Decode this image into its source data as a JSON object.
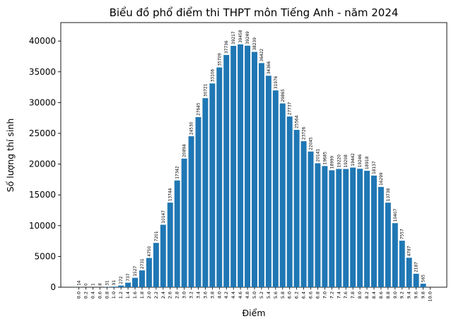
{
  "chart_data": {
    "type": "bar",
    "title": "Biểu đồ phổ điểm thi THPT môn Tiếng Anh - năm 2024",
    "xlabel": "Điểm",
    "ylabel": "Số lượng thí sinh",
    "ylim": [
      0,
      43000
    ],
    "yticks": [
      0,
      5000,
      10000,
      15000,
      20000,
      25000,
      30000,
      35000,
      40000
    ],
    "grid": false,
    "bar_color": "#1f77b4",
    "categories": [
      "0.0",
      "0.2",
      "0.4",
      "0.6",
      "0.8",
      "1.0",
      "1.2",
      "1.4",
      "1.6",
      "1.8",
      "2.0",
      "2.2",
      "2.4",
      "2.6",
      "2.8",
      "3.0",
      "3.2",
      "3.4",
      "3.6",
      "3.8",
      "4.0",
      "4.2",
      "4.4",
      "4.6",
      "4.8",
      "5.0",
      "5.2",
      "5.4",
      "5.6",
      "5.8",
      "6.0",
      "6.2",
      "6.4",
      "6.6",
      "6.8",
      "7.0",
      "7.2",
      "7.4",
      "7.6",
      "7.8",
      "8.0",
      "8.2",
      "8.4",
      "8.6",
      "8.8",
      "9.0",
      "9.2",
      "9.4",
      "9.6",
      "9.8",
      "10.0"
    ],
    "values": [
      14,
      0,
      1,
      8,
      31,
      91,
      272,
      737,
      1527,
      2731,
      4750,
      7201,
      10147,
      13744,
      17342,
      20894,
      24530,
      27645,
      30721,
      33106,
      35709,
      37736,
      39217,
      39458,
      39249,
      38239,
      36422,
      34366,
      31976,
      29865,
      27737,
      25564,
      23726,
      22045,
      20141,
      19685,
      18999,
      19220,
      19208,
      19442,
      19246,
      18918,
      18137,
      16299,
      13738,
      10407,
      7557,
      4787,
      2187,
      565,
      0
    ]
  }
}
